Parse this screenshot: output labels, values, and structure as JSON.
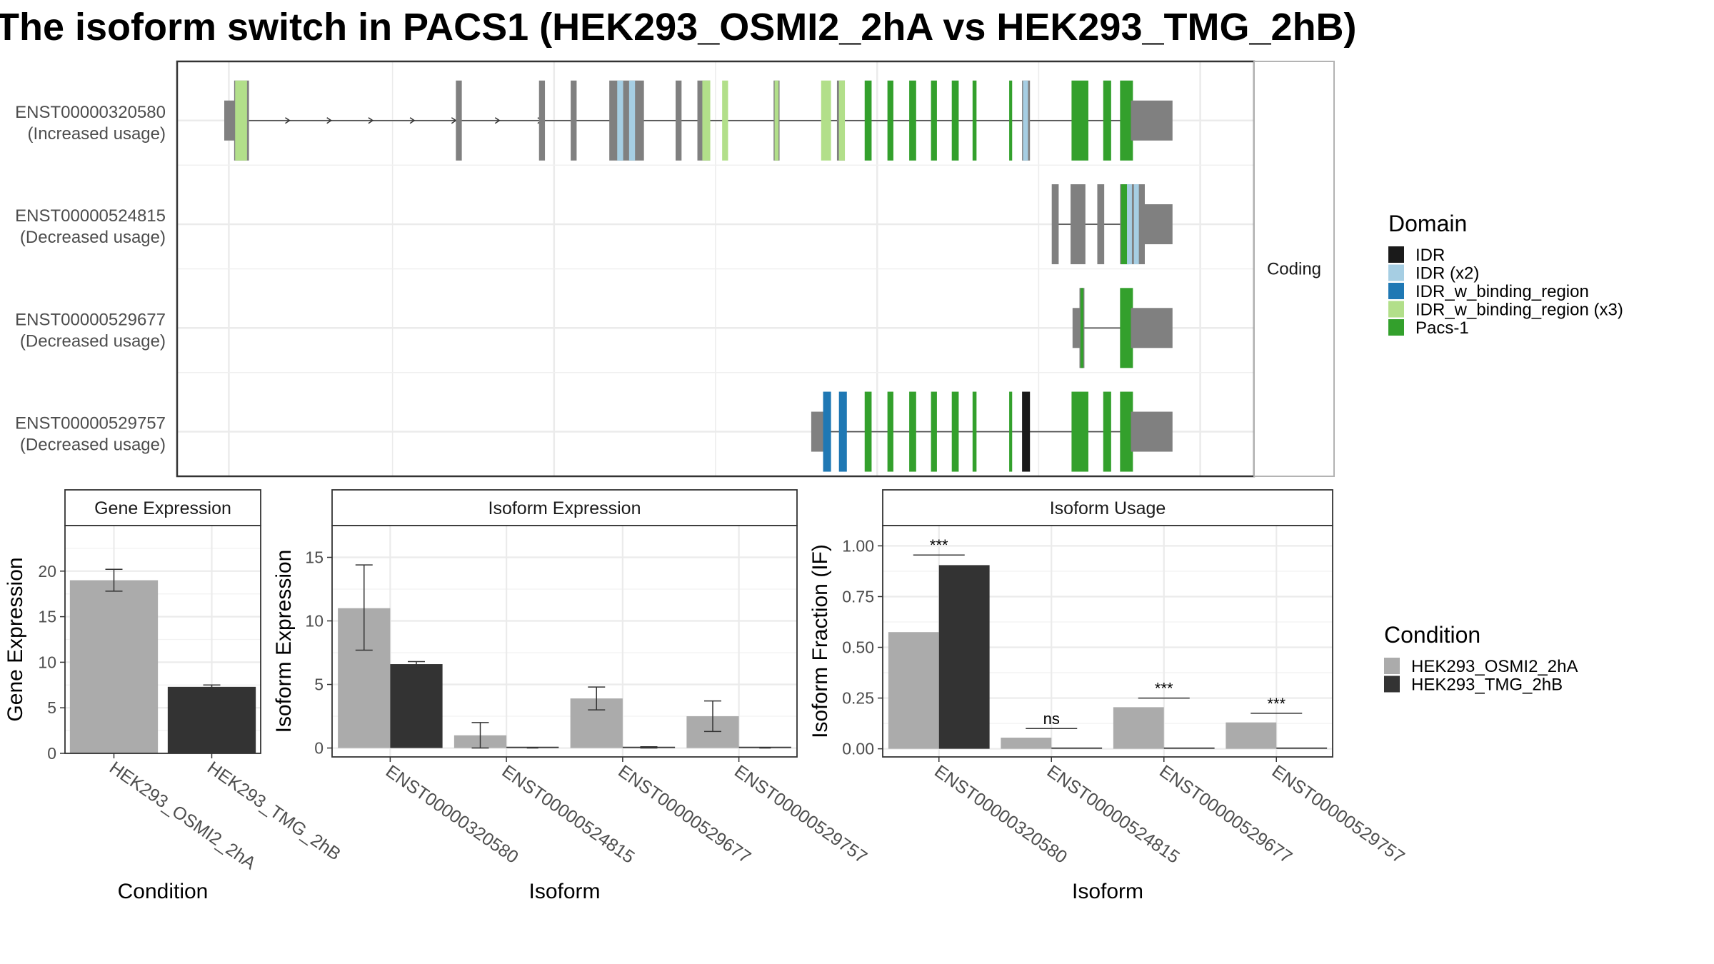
{
  "title": "The isoform switch in PACS1 (HEK293_OSMI2_2hA vs HEK293_TMG_2hB)",
  "colors": {
    "IDR": "#1a1a1a",
    "IDR (x2)": "#a6cee3",
    "IDR_w_binding_region": "#1f78b4",
    "IDR_w_binding_region (x3)": "#b2df8a",
    "Pacs-1": "#33a02c",
    "noncoding": "#808080",
    "cond_a": "#ababab",
    "cond_b": "#333333"
  },
  "chart_data": [
    {
      "type": "gene-structure",
      "facet_label": "Coding",
      "legend_title": "Domain",
      "legend_entries": [
        "IDR",
        "IDR (x2)",
        "IDR_w_binding_region",
        "IDR_w_binding_region (x3)",
        "Pacs-1"
      ],
      "transcripts": [
        {
          "id": "ENST00000320580",
          "usage": "(Increased usage)",
          "line": [
            0.022,
            0.93
          ],
          "arrows": [
            0.066,
            0.108,
            0.15,
            0.192,
            0.234,
            0.278,
            0.321
          ],
          "blocks": [
            [
              0.0,
              0.012,
              "noncoding",
              "s"
            ],
            [
              0.01,
              0.025,
              "noncoding",
              "c"
            ],
            [
              0.011,
              0.023,
              "IDR_w_binding_region (x3)",
              "c"
            ],
            [
              0.234,
              0.24,
              "noncoding",
              "c"
            ],
            [
              0.318,
              0.324,
              "noncoding",
              "c"
            ],
            [
              0.35,
              0.356,
              "noncoding",
              "c"
            ],
            [
              0.389,
              0.424,
              "noncoding",
              "c"
            ],
            [
              0.397,
              0.403,
              "IDR (x2)",
              "c"
            ],
            [
              0.409,
              0.415,
              "IDR (x2)",
              "c"
            ],
            [
              0.456,
              0.462,
              "noncoding",
              "c"
            ],
            [
              0.478,
              0.491,
              "noncoding",
              "c"
            ],
            [
              0.483,
              0.491,
              "IDR_w_binding_region (x3)",
              "c"
            ],
            [
              0.503,
              0.509,
              "IDR_w_binding_region (x3)",
              "c"
            ],
            [
              0.555,
              0.561,
              "noncoding",
              "c"
            ],
            [
              0.556,
              0.56,
              "IDR_w_binding_region (x3)",
              "c"
            ],
            [
              0.603,
              0.613,
              "IDR_w_binding_region (x3)",
              "c"
            ],
            [
              0.619,
              0.627,
              "noncoding",
              "c"
            ],
            [
              0.621,
              0.627,
              "IDR_w_binding_region (x3)",
              "c"
            ],
            [
              0.647,
              0.654,
              "Pacs-1",
              "c"
            ],
            [
              0.67,
              0.676,
              "Pacs-1",
              "c"
            ],
            [
              0.692,
              0.699,
              "Pacs-1",
              "c"
            ],
            [
              0.714,
              0.72,
              "Pacs-1",
              "c"
            ],
            [
              0.735,
              0.742,
              "Pacs-1",
              "c"
            ],
            [
              0.756,
              0.76,
              "Pacs-1",
              "c"
            ],
            [
              0.793,
              0.796,
              "Pacs-1",
              "c"
            ],
            [
              0.806,
              0.814,
              "noncoding",
              "c"
            ],
            [
              0.807,
              0.812,
              "IDR (x2)",
              "c"
            ],
            [
              0.856,
              0.873,
              "Pacs-1",
              "c"
            ],
            [
              0.888,
              0.896,
              "Pacs-1",
              "c"
            ],
            [
              0.905,
              0.918,
              "Pacs-1",
              "c"
            ],
            [
              0.916,
              0.958,
              "noncoding",
              "s"
            ]
          ]
        },
        {
          "id": "ENST00000524815",
          "usage": "(Decreased usage)",
          "line": [
            0.838,
            0.935
          ],
          "arrows": [],
          "blocks": [
            [
              0.836,
              0.843,
              "noncoding",
              "c"
            ],
            [
              0.855,
              0.87,
              "noncoding",
              "c"
            ],
            [
              0.882,
              0.889,
              "noncoding",
              "c"
            ],
            [
              0.905,
              0.93,
              "noncoding",
              "c"
            ],
            [
              0.906,
              0.914,
              "Pacs-1",
              "c"
            ],
            [
              0.912,
              0.917,
              "IDR (x2)",
              "c"
            ],
            [
              0.919,
              0.924,
              "IDR (x2)",
              "c"
            ],
            [
              0.928,
              0.958,
              "noncoding",
              "s"
            ]
          ]
        },
        {
          "id": "ENST00000529677",
          "usage": "(Decreased usage)",
          "line": [
            0.866,
            0.916
          ],
          "arrows": [],
          "blocks": [
            [
              0.857,
              0.866,
              "noncoding",
              "s"
            ],
            [
              0.864,
              0.869,
              "noncoding",
              "c"
            ],
            [
              0.865,
              0.868,
              "Pacs-1",
              "c"
            ],
            [
              0.905,
              0.918,
              "Pacs-1",
              "c"
            ],
            [
              0.916,
              0.958,
              "noncoding",
              "s"
            ]
          ]
        },
        {
          "id": "ENST00000529757",
          "usage": "(Decreased usage)",
          "line": [
            0.6,
            0.93
          ],
          "arrows": [],
          "blocks": [
            [
              0.593,
              0.607,
              "noncoding",
              "s"
            ],
            [
              0.605,
              0.613,
              "IDR_w_binding_region",
              "c"
            ],
            [
              0.621,
              0.629,
              "IDR_w_binding_region",
              "c"
            ],
            [
              0.647,
              0.654,
              "Pacs-1",
              "c"
            ],
            [
              0.67,
              0.676,
              "Pacs-1",
              "c"
            ],
            [
              0.692,
              0.699,
              "Pacs-1",
              "c"
            ],
            [
              0.714,
              0.72,
              "Pacs-1",
              "c"
            ],
            [
              0.735,
              0.742,
              "Pacs-1",
              "c"
            ],
            [
              0.756,
              0.76,
              "Pacs-1",
              "c"
            ],
            [
              0.793,
              0.796,
              "Pacs-1",
              "c"
            ],
            [
              0.806,
              0.814,
              "IDR",
              "c"
            ],
            [
              0.856,
              0.873,
              "Pacs-1",
              "c"
            ],
            [
              0.888,
              0.896,
              "Pacs-1",
              "c"
            ],
            [
              0.905,
              0.918,
              "Pacs-1",
              "c"
            ],
            [
              0.916,
              0.958,
              "noncoding",
              "s"
            ]
          ]
        }
      ]
    },
    {
      "type": "bar",
      "panel_title": "Gene Expression",
      "xlabel": "Condition",
      "ylabel": "Gene Expression",
      "ylim": [
        0,
        25
      ],
      "yticks": [
        0,
        5,
        10,
        15,
        20
      ],
      "categories": [
        "HEK293_OSMI2_2hA",
        "HEK293_TMG_2hB"
      ],
      "series": [
        {
          "values": [
            19.0,
            7.3
          ],
          "errors": [
            [
              17.8,
              20.2
            ],
            [
              7.1,
              7.5
            ]
          ]
        }
      ]
    },
    {
      "type": "bar",
      "panel_title": "Isoform Expression",
      "xlabel": "Isoform",
      "ylabel": "Isoform Expression",
      "ylim": [
        -0.7,
        17.5
      ],
      "yticks": [
        0,
        5,
        10,
        15
      ],
      "categories": [
        "ENST00000320580",
        "ENST00000524815",
        "ENST00000529677",
        "ENST00000529757"
      ],
      "series": [
        {
          "name": "HEK293_OSMI2_2hA",
          "values": [
            11.0,
            1.0,
            3.9,
            2.5
          ],
          "errors": [
            [
              7.7,
              14.4
            ],
            [
              0.0,
              2.0
            ],
            [
              3.0,
              4.8
            ],
            [
              1.3,
              3.7
            ]
          ]
        },
        {
          "name": "HEK293_TMG_2hB",
          "values": [
            6.6,
            0.0,
            0.05,
            0.0
          ],
          "errors": [
            [
              6.4,
              6.8
            ],
            [
              0,
              0
            ],
            [
              0.0,
              0.1
            ],
            [
              0,
              0
            ]
          ]
        }
      ]
    },
    {
      "type": "bar",
      "panel_title": "Isoform Usage",
      "xlabel": "Isoform",
      "ylabel": "Isoform Fraction (IF)",
      "ylim": [
        -0.04,
        1.1
      ],
      "yticks": [
        0.0,
        0.25,
        0.5,
        0.75,
        1.0
      ],
      "ytick_labels": [
        "0.00",
        "0.25",
        "0.50",
        "0.75",
        "1.00"
      ],
      "categories": [
        "ENST00000320580",
        "ENST00000524815",
        "ENST00000529677",
        "ENST00000529757"
      ],
      "series": [
        {
          "name": "HEK293_OSMI2_2hA",
          "values": [
            0.575,
            0.055,
            0.205,
            0.13
          ]
        },
        {
          "name": "HEK293_TMG_2hB",
          "values": [
            0.905,
            0.0,
            0.005,
            0.0
          ]
        }
      ],
      "significance": [
        {
          "label": "***",
          "y": 0.955
        },
        {
          "label": "ns",
          "y": 0.1
        },
        {
          "label": "***",
          "y": 0.25
        },
        {
          "label": "***",
          "y": 0.175
        }
      ]
    }
  ],
  "condition_legend": {
    "title": "Condition",
    "entries": [
      "HEK293_OSMI2_2hA",
      "HEK293_TMG_2hB"
    ]
  }
}
